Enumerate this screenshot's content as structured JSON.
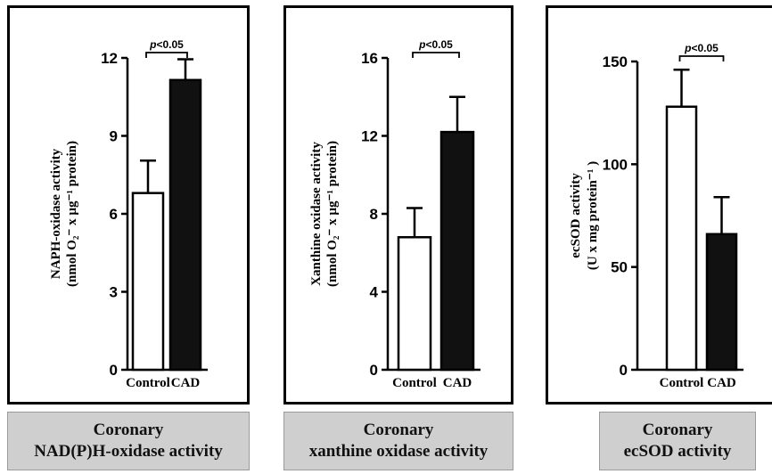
{
  "chart_data": [
    {
      "type": "bar",
      "categories": [
        "Control",
        "CAD"
      ],
      "values": [
        6.8,
        11.15
      ],
      "errors": [
        1.25,
        0.8
      ],
      "ylabel": "NAPH-oxidase activity",
      "ylabel_units": "(nmol O₂⁻ x µg⁻¹ protein)",
      "ylim": [
        0,
        12
      ],
      "yticks": [
        0,
        3,
        6,
        9,
        12
      ],
      "bar_colors": [
        "#ffffff",
        "#111111"
      ],
      "annotation": "p<0.05",
      "caption": [
        "Coronary",
        "NAD(P)H-oxidase activity"
      ]
    },
    {
      "type": "bar",
      "categories": [
        "Control",
        "CAD"
      ],
      "values": [
        6.8,
        12.2
      ],
      "errors": [
        1.5,
        1.8
      ],
      "ylabel": "Xanthine oxidase activity",
      "ylabel_units": "(nmol O₂⁻ x µg⁻¹ protein)",
      "ylim": [
        0,
        16
      ],
      "yticks": [
        0,
        4,
        8,
        12,
        16
      ],
      "bar_colors": [
        "#ffffff",
        "#111111"
      ],
      "annotation": "p<0.05",
      "caption": [
        "Coronary",
        "xanthine oxidase activity"
      ]
    },
    {
      "type": "bar",
      "categories": [
        "Control",
        "CAD"
      ],
      "values": [
        128,
        66
      ],
      "errors": [
        18,
        18
      ],
      "ylabel": "ecSOD activity",
      "ylabel_units": "(U x mg protein⁻¹ )",
      "ylim": [
        0,
        150
      ],
      "yticks": [
        0,
        50,
        100,
        150
      ],
      "bar_colors": [
        "#ffffff",
        "#111111"
      ],
      "annotation": "p<0.05",
      "caption": [
        "Coronary",
        "ecSOD activity"
      ]
    }
  ]
}
